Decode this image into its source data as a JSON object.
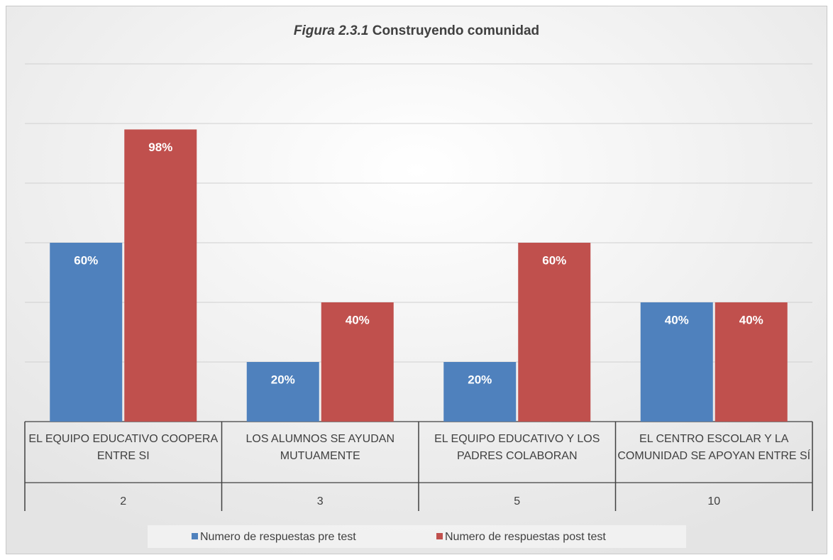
{
  "chart_data": {
    "type": "bar",
    "title_number": "Figura 2.3.1",
    "title": "Construyendo comunidad",
    "categories": [
      "EL EQUIPO EDUCATIVO COOPERA ENTRE SI",
      "LOS ALUMNOS SE AYUDAN MUTUAMENTE",
      "EL EQUIPO EDUCATIVO Y LOS PADRES COLABORAN",
      "EL CENTRO ESCOLAR Y LA COMUNIDAD SE APOYAN ENTRE SÍ"
    ],
    "category_groups": [
      "2",
      "3",
      "5",
      "10"
    ],
    "series": [
      {
        "name": "Numero de respuestas pre test",
        "color": "#4f81bd",
        "values": [
          60,
          20,
          20,
          40
        ],
        "value_labels": [
          "60%",
          "20%",
          "20%",
          "40%"
        ]
      },
      {
        "name": "Numero de respuestas post test",
        "color": "#c0504d",
        "values": [
          98,
          40,
          60,
          40
        ],
        "value_labels": [
          "98%",
          "40%",
          "60%",
          "40%"
        ]
      }
    ],
    "ylim": [
      0,
      120
    ],
    "yticks": [
      0,
      20,
      40,
      60,
      80,
      100,
      120
    ],
    "grid": true,
    "show_ytick_labels": false,
    "legend": "bottom"
  }
}
